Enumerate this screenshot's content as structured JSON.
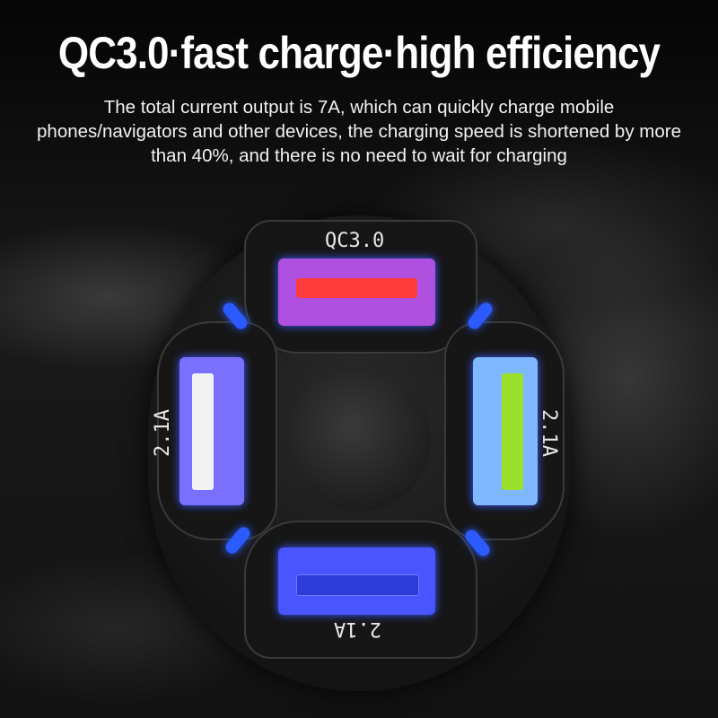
{
  "headline": "QC3.0·fast charge·high efficiency",
  "description": "The total current output is 7A, which can quickly charge mobile phones/navigators and other devices, the charging speed is shortened by more than 40%, and there is no need to wait for charging",
  "ports": {
    "top": {
      "label": "QC3.0",
      "tongue_color": "#ff3b3b",
      "body_color": "#b050e0"
    },
    "left": {
      "label": "2.1A",
      "tongue_color": "#f2f2f2",
      "body_color": "#7a70ff"
    },
    "right": {
      "label": "2.1A",
      "tongue_color": "#9be02a",
      "body_color": "#7fb8ff"
    },
    "bottom": {
      "label": "2.1A",
      "tongue_color": "#2d3bd8",
      "body_color": "#4a55ff"
    }
  },
  "led_color": "#2b5bff"
}
